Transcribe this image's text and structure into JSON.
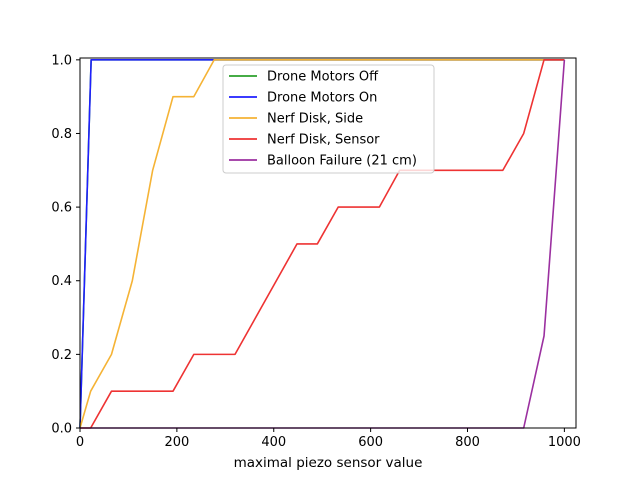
{
  "chart_data": {
    "type": "line",
    "title": "",
    "xlabel": "maximal piezo sensor value",
    "ylabel": "",
    "xlim": [
      0,
      1024
    ],
    "ylim": [
      0,
      1.005
    ],
    "xticks": [
      0,
      200,
      400,
      600,
      800,
      1000
    ],
    "yticks": [
      0.0,
      0.2,
      0.4,
      0.6,
      0.8,
      1.0
    ],
    "xtick_labels": [
      "0",
      "200",
      "400",
      "600",
      "800",
      "1000"
    ],
    "ytick_labels": [
      "0.0",
      "0.2",
      "0.4",
      "0.6",
      "0.8",
      "1.0"
    ],
    "grid": false,
    "legend_position": "upper center",
    "series": [
      {
        "name": "Drone Motors Off",
        "color": "#2ca02c",
        "x": [
          0,
          23,
          1000
        ],
        "y": [
          0.0,
          1.0,
          1.0
        ]
      },
      {
        "name": "Drone Motors On",
        "color": "#1f1fff",
        "x": [
          0,
          23,
          1000
        ],
        "y": [
          0.0,
          1.0,
          1.0
        ]
      },
      {
        "name": "Nerf Disk, Side",
        "color": "#f5b335",
        "x": [
          0,
          22,
          65,
          108,
          150,
          192,
          235,
          277,
          1000
        ],
        "y": [
          0.0,
          0.1,
          0.2,
          0.4,
          0.7,
          0.9,
          0.9,
          1.0,
          1.0
        ]
      },
      {
        "name": "Nerf Disk, Sensor",
        "color": "#ee3333",
        "x": [
          0,
          22,
          65,
          192,
          235,
          320,
          448,
          490,
          533,
          618,
          660,
          873,
          916,
          958,
          1000
        ],
        "y": [
          0.0,
          0.0,
          0.1,
          0.1,
          0.2,
          0.2,
          0.5,
          0.5,
          0.6,
          0.6,
          0.7,
          0.7,
          0.8,
          1.0,
          1.0
        ]
      },
      {
        "name": "Balloon Failure (21 cm)",
        "color": "#9b30a0",
        "x": [
          0,
          916,
          958,
          1000
        ],
        "y": [
          0.0,
          0.0,
          0.25,
          1.0
        ]
      }
    ]
  }
}
